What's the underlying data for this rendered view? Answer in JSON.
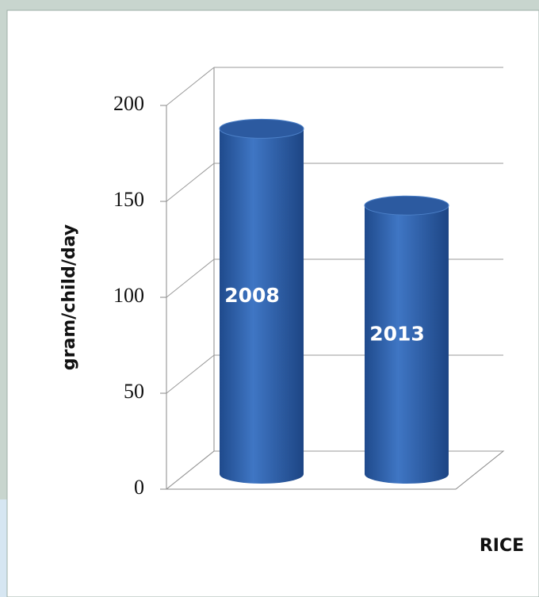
{
  "chart_data": {
    "type": "bar",
    "categories": [
      "2008",
      "2013"
    ],
    "values": [
      180,
      140
    ],
    "color": "#2f62ad",
    "xlabel": "RICE",
    "ylabel": "gram/child/day",
    "ylim": [
      0,
      200
    ],
    "yticks": [
      0,
      50,
      100,
      150,
      200
    ],
    "grid": true
  }
}
